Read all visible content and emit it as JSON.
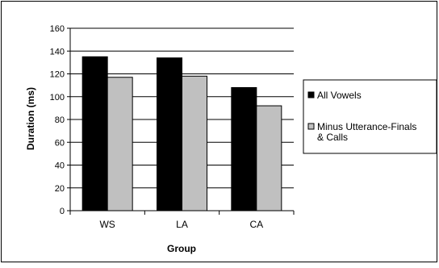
{
  "chart_data": {
    "type": "bar",
    "title": "",
    "xlabel": "Group",
    "ylabel": "Duration (ms)",
    "categories": [
      "WS",
      "LA",
      "CA"
    ],
    "ylim": [
      0,
      160
    ],
    "yticks": [
      0,
      20,
      40,
      60,
      80,
      100,
      120,
      140,
      160
    ],
    "grid": true,
    "legend_position": "right",
    "series": [
      {
        "name": "All Vowels",
        "color": "#000000",
        "values": [
          135,
          134,
          108
        ]
      },
      {
        "name": "Minus Utterance-Finals & Calls",
        "color": "#c0c0c0",
        "values": [
          117,
          118,
          92
        ]
      }
    ],
    "legend": {
      "entries": [
        {
          "lines": [
            "All Vowels"
          ]
        },
        {
          "lines": [
            "Minus Utterance-Finals",
            "& Calls"
          ]
        }
      ]
    }
  }
}
